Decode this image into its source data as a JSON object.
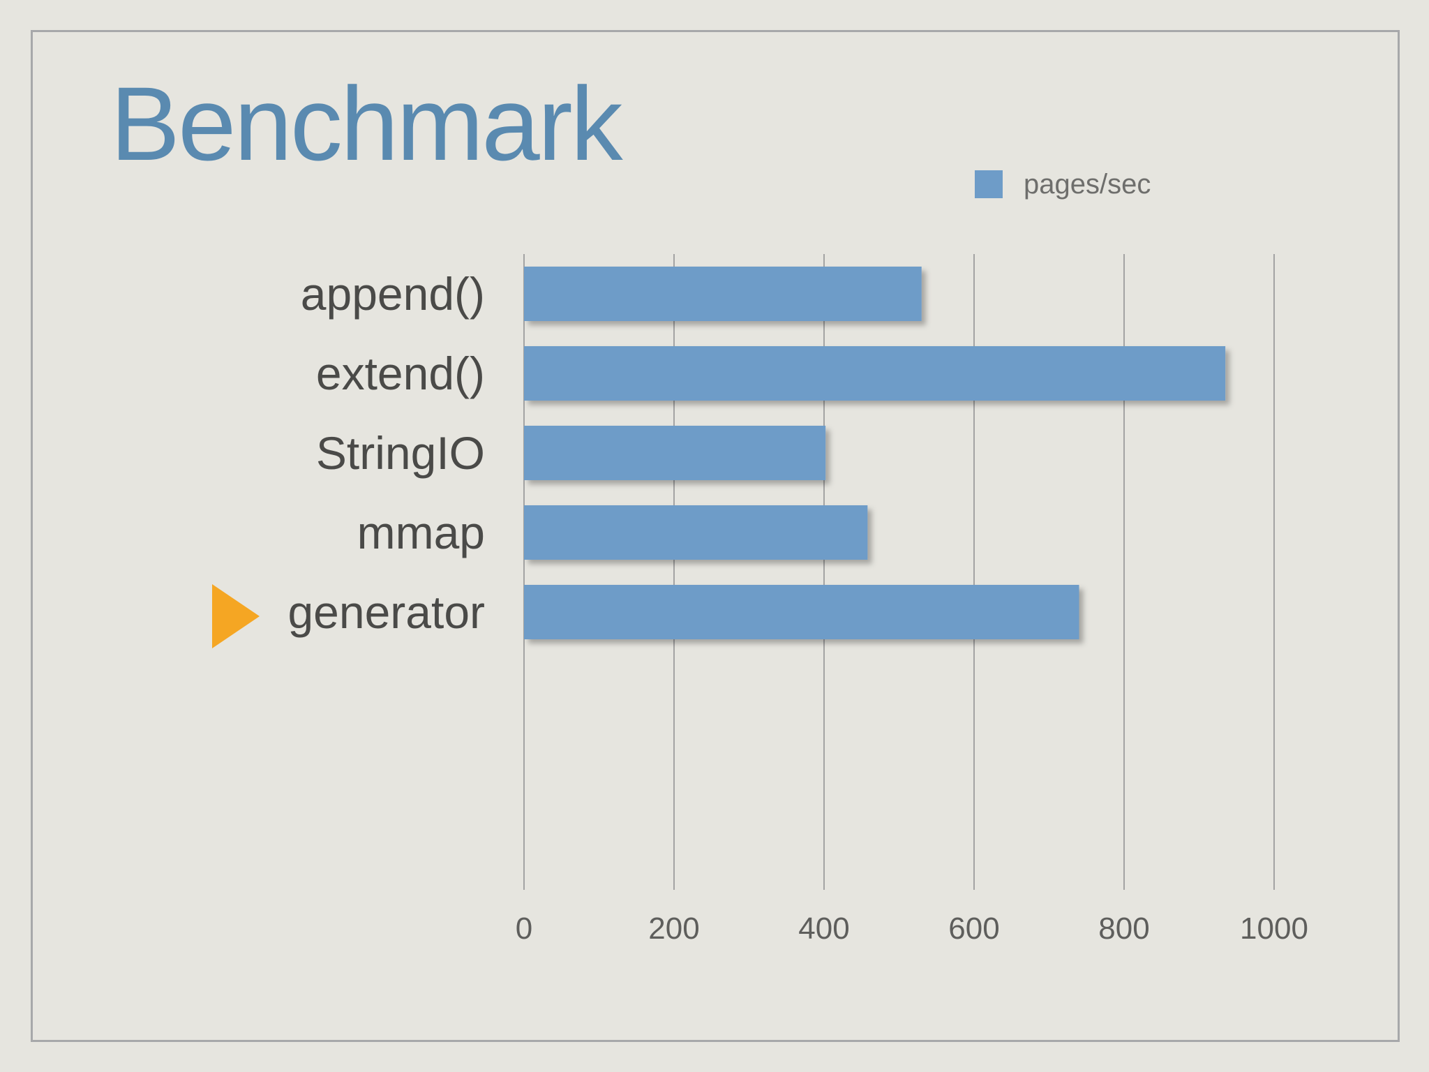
{
  "slide": {
    "title": "Benchmark"
  },
  "colors": {
    "background": "#e6e5df",
    "frame": "#a7a8aa",
    "title": "#5a8ab0",
    "bar": "#6e9cc8",
    "grid": "#a3a3a3",
    "label": "#4a4a48",
    "marker": "#f5a623"
  },
  "chart_data": {
    "type": "bar",
    "orientation": "horizontal",
    "categories": [
      "append()",
      "extend()",
      "StringIO",
      "mmap",
      "generator"
    ],
    "series": [
      {
        "name": "pages/sec",
        "values": [
          530,
          935,
          402,
          458,
          740
        ]
      }
    ],
    "xlim": [
      0,
      1000
    ],
    "xticks": [
      0,
      200,
      400,
      600,
      800,
      1000
    ],
    "grid": true,
    "legend": "top-right",
    "highlight": {
      "category": "generator",
      "marker": "triangle-right-icon"
    }
  }
}
